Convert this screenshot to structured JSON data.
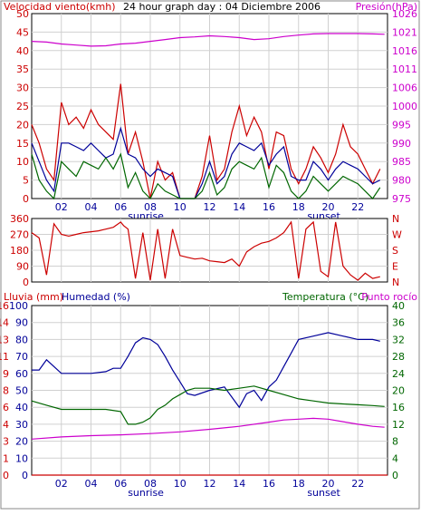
{
  "chart_data": [
    {
      "type": "line",
      "title": "24 hour graph day : 04 Diciembre 2006",
      "left_axis": {
        "label": "Velocidad viento(kmh)",
        "ticks": [
          "0",
          "5",
          "10",
          "15",
          "20",
          "25",
          "30",
          "35",
          "40",
          "45",
          "50"
        ],
        "range": [
          0,
          50
        ],
        "color": "#cc0000"
      },
      "right_axis": {
        "label": "Presión(hPa)",
        "ticks": [
          "975",
          "980",
          "985",
          "990",
          "995",
          "1000",
          "1006",
          "1011",
          "1016",
          "1021",
          "1026"
        ],
        "range": [
          975,
          1026
        ],
        "color": "#cc00cc"
      },
      "x_ticks": [
        "02",
        "04",
        "06",
        "08",
        "10",
        "12",
        "14",
        "16",
        "18",
        "20",
        "22"
      ],
      "x_range": [
        0,
        24
      ],
      "sunrise_label": "sunrise",
      "sunset_label": "sunset",
      "sunrise_hour": 7.7,
      "sunset_hour": 19.7,
      "series": [
        {
          "color": "#cc00cc",
          "x": [
            0,
            1,
            2,
            3,
            4,
            5,
            6,
            7,
            8,
            9,
            10,
            11,
            12,
            13,
            14,
            15,
            16,
            17,
            18,
            19,
            20,
            21,
            22,
            23,
            23.8
          ],
          "values": [
            42.5,
            42.3,
            41.8,
            41.5,
            41.2,
            41.3,
            41.8,
            42,
            42.5,
            43,
            43.5,
            43.7,
            44,
            43.8,
            43.5,
            43,
            43.2,
            43.8,
            44.2,
            44.5,
            44.6,
            44.6,
            44.6,
            44.5,
            44.4
          ]
        },
        {
          "color": "#cc0000",
          "x": [
            0,
            0.5,
            1,
            1.5,
            2,
            2.5,
            3,
            3.5,
            4,
            4.5,
            5,
            5.5,
            6,
            6.5,
            7,
            7.5,
            8,
            8.5,
            9,
            9.5,
            10,
            10.5,
            11,
            11.5,
            12,
            12.5,
            13,
            13.5,
            14,
            14.5,
            15,
            15.5,
            16,
            16.5,
            17,
            17.5,
            18,
            18.5,
            19,
            19.5,
            20,
            20.5,
            21,
            21.5,
            22,
            22.5,
            23,
            23.5
          ],
          "values": [
            20,
            15,
            8,
            5,
            26,
            20,
            22,
            19,
            24,
            20,
            18,
            16,
            31,
            12,
            18,
            10,
            0,
            10,
            5,
            7,
            0,
            0,
            0,
            6,
            17,
            5,
            8,
            18,
            25,
            17,
            22,
            18,
            8,
            18,
            17,
            8,
            4,
            8,
            14,
            11,
            7,
            12,
            20,
            14,
            12,
            8,
            4,
            8
          ]
        },
        {
          "color": "#000099",
          "x": [
            0,
            0.5,
            1,
            1.5,
            2,
            2.5,
            3,
            3.5,
            4,
            4.5,
            5,
            5.5,
            6,
            6.5,
            7,
            7.5,
            8,
            8.5,
            9,
            9.5,
            10,
            10.5,
            11,
            11.5,
            12,
            12.5,
            13,
            13.5,
            14,
            14.5,
            15,
            15.5,
            16,
            16.5,
            17,
            17.5,
            18,
            18.5,
            19,
            19.5,
            20,
            20.5,
            21,
            21.5,
            22,
            22.5,
            23,
            23.5
          ],
          "values": [
            15,
            10,
            5,
            2,
            15,
            15,
            14,
            13,
            15,
            13,
            11,
            12,
            19,
            12,
            11,
            8,
            6,
            8,
            7,
            6,
            0,
            0,
            0,
            4,
            10,
            4,
            6,
            12,
            15,
            14,
            13,
            15,
            9,
            12,
            14,
            6,
            5,
            5,
            10,
            8,
            5,
            8,
            10,
            9,
            8,
            6,
            4,
            5
          ]
        },
        {
          "color": "#006600",
          "x": [
            0,
            0.5,
            1,
            1.5,
            2,
            2.5,
            3,
            3.5,
            4,
            4.5,
            5,
            5.5,
            6,
            6.5,
            7,
            7.5,
            8,
            8.5,
            9,
            9.5,
            10,
            10.5,
            11,
            11.5,
            12,
            12.5,
            13,
            13.5,
            14,
            14.5,
            15,
            15.5,
            16,
            16.5,
            17,
            17.5,
            18,
            18.5,
            19,
            19.5,
            20,
            20.5,
            21,
            21.5,
            22,
            22.5,
            23,
            23.5
          ],
          "values": [
            12,
            5,
            2,
            0,
            10,
            8,
            6,
            10,
            9,
            8,
            11,
            8,
            12,
            3,
            7,
            2,
            0,
            4,
            2,
            1,
            0,
            0,
            0,
            2,
            7,
            1,
            3,
            8,
            10,
            9,
            8,
            11,
            3,
            9,
            7,
            2,
            0,
            2,
            6,
            4,
            2,
            4,
            6,
            5,
            4,
            2,
            0,
            3
          ]
        }
      ]
    },
    {
      "type": "line",
      "left_axis": {
        "ticks": [
          "0",
          "90",
          "180",
          "270",
          "360"
        ],
        "range": [
          0,
          360
        ],
        "color": "#cc0000"
      },
      "right_axis": {
        "ticks": [
          "N",
          "E",
          "S",
          "W",
          "N"
        ],
        "color": "#cc0000"
      },
      "x_range": [
        0,
        24
      ],
      "series": [
        {
          "color": "#cc0000",
          "x": [
            0,
            0.5,
            1,
            1.5,
            2,
            2.5,
            3,
            3.5,
            4,
            4.5,
            5,
            5.5,
            6,
            6.2,
            6.5,
            7,
            7.5,
            8,
            8.5,
            9,
            9.5,
            10,
            10.5,
            11,
            11.5,
            12,
            12.5,
            13,
            13.5,
            14,
            14.5,
            15,
            15.5,
            16,
            16.5,
            17,
            17.5,
            18,
            18.5,
            19,
            19.5,
            20,
            20.5,
            21,
            21.5,
            22,
            22.5,
            23,
            23.5
          ],
          "values": [
            280,
            250,
            40,
            330,
            270,
            260,
            270,
            280,
            285,
            290,
            300,
            310,
            340,
            320,
            300,
            20,
            280,
            10,
            300,
            20,
            300,
            150,
            140,
            130,
            135,
            120,
            115,
            110,
            130,
            90,
            170,
            200,
            220,
            230,
            250,
            280,
            340,
            20,
            300,
            340,
            60,
            30,
            340,
            90,
            40,
            10,
            50,
            20,
            30
          ]
        }
      ]
    },
    {
      "type": "line",
      "left_axis": {
        "label": "Lluvia (mm)",
        "ticks": [
          "0",
          "1",
          "3",
          "4",
          "6",
          "8",
          "9",
          "11",
          "13",
          "14",
          "16"
        ],
        "range": [
          0,
          16
        ],
        "color": "#cc0000"
      },
      "humidity_axis": {
        "label": "Humedad (%)",
        "ticks": [
          "0",
          "10",
          "20",
          "30",
          "40",
          "50",
          "60",
          "70",
          "80",
          "90",
          "100"
        ],
        "range": [
          0,
          100
        ],
        "color": "#000099"
      },
      "right_axis": {
        "label": "Temperatura (°C)",
        "ticks": [
          "0",
          "4",
          "8",
          "12",
          "16",
          "20",
          "24",
          "28",
          "32",
          "36",
          "40"
        ],
        "range": [
          0,
          40
        ],
        "color": "#006600"
      },
      "dew_label": "Punto rocío",
      "dew_color": "#cc00cc",
      "x_ticks": [
        "02",
        "04",
        "06",
        "08",
        "10",
        "12",
        "14",
        "16",
        "18",
        "20",
        "22"
      ],
      "x_range": [
        0,
        24
      ],
      "sunrise_label": "sunrise",
      "sunset_label": "sunset",
      "sunrise_hour": 7.7,
      "sunset_hour": 19.7,
      "series": [
        {
          "color": "#cc0000",
          "x": [
            0,
            24
          ],
          "values": [
            0,
            0
          ]
        },
        {
          "color": "#000099",
          "x": [
            0,
            0.5,
            1,
            1.5,
            2,
            3,
            4,
            5,
            5.5,
            6,
            6.5,
            7,
            7.5,
            8,
            8.5,
            9,
            9.5,
            10,
            10.5,
            11,
            12,
            13,
            13.5,
            14,
            14.5,
            15,
            15.5,
            16,
            16.5,
            17,
            17.5,
            18,
            19,
            20,
            21,
            22,
            23,
            23.5
          ],
          "values": [
            62,
            62,
            68,
            64,
            60,
            60,
            60,
            61,
            63,
            63,
            70,
            78,
            81,
            80,
            77,
            70,
            62,
            55,
            48,
            47,
            50,
            52,
            46,
            40,
            48,
            50,
            44,
            52,
            56,
            64,
            72,
            80,
            82,
            84,
            82,
            80,
            80,
            79
          ]
        },
        {
          "color": "#006600",
          "x": [
            0,
            1,
            2,
            3,
            4,
            5,
            6,
            6.5,
            7,
            7.5,
            8,
            8.5,
            9,
            9.5,
            10,
            10.5,
            11,
            12,
            13,
            14,
            15,
            16,
            17,
            18,
            19,
            20,
            21,
            22,
            23,
            23.8
          ],
          "values": [
            17.5,
            16.5,
            15.5,
            15.5,
            15.5,
            15.5,
            15,
            12,
            12,
            12.5,
            13.5,
            15.5,
            16.5,
            18,
            19,
            20,
            20.5,
            20.5,
            20,
            20.5,
            21,
            20,
            19,
            18,
            17.5,
            17,
            16.8,
            16.6,
            16.4,
            16.2
          ]
        },
        {
          "color": "#cc00cc",
          "x": [
            0,
            2,
            4,
            6,
            8,
            10,
            12,
            14,
            16,
            17,
            18,
            19,
            20,
            21,
            22,
            23,
            23.8
          ],
          "values": [
            8.5,
            9,
            9.3,
            9.5,
            9.8,
            10.2,
            10.8,
            11.5,
            12.5,
            13,
            13.2,
            13.4,
            13.2,
            12.6,
            12,
            11.5,
            11.3
          ]
        }
      ]
    }
  ]
}
